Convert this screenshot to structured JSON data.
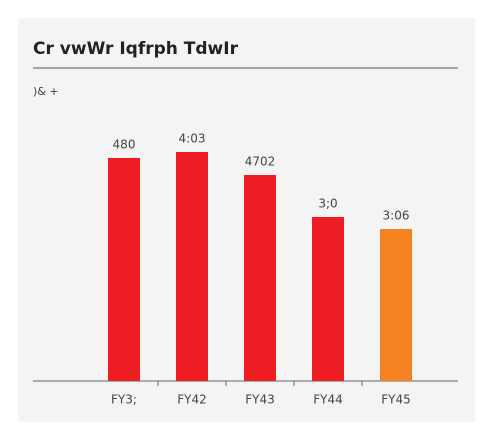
{
  "chart_data": {
    "type": "bar",
    "title": "Cr vwWr Iqfrph TdwIr",
    "subtitle": ")& +",
    "categories": [
      "FY3;",
      "FY42",
      "FY43",
      "FY44",
      "FY45"
    ],
    "values": [
      22.3,
      22.9,
      20.6,
      16.4,
      15.2
    ],
    "value_labels": [
      "480",
      "4:03",
      "4702",
      "3;0",
      "3:06"
    ],
    "colors": [
      "#ee1d23",
      "#ee1d23",
      "#ee1d23",
      "#ee1d23",
      "#f58220"
    ],
    "ylim": [
      0,
      25
    ]
  }
}
